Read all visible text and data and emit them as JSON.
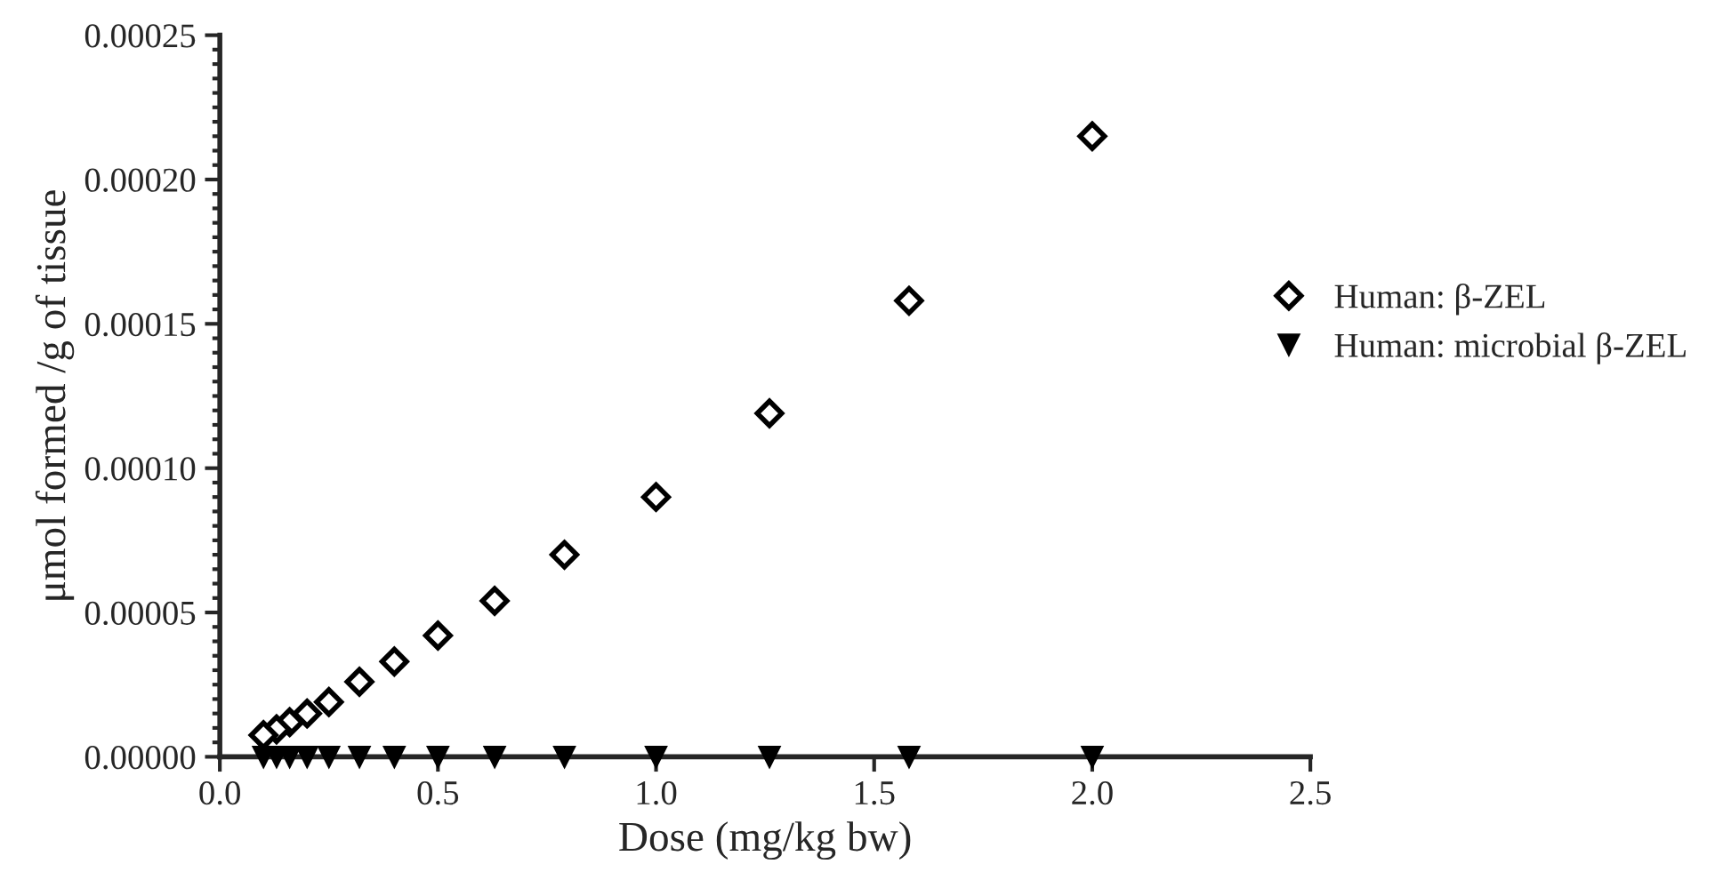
{
  "chart_data": {
    "type": "scatter",
    "xlabel": "Dose (mg/kg bw)",
    "ylabel": "μmol formed /g of tissue",
    "xlim": [
      0,
      2.5
    ],
    "ylim": [
      0,
      0.00025
    ],
    "xticks": [
      {
        "value": 0,
        "label": "0.0"
      },
      {
        "value": 0.5,
        "label": "0.5"
      },
      {
        "value": 1,
        "label": "1.0"
      },
      {
        "value": 1.5,
        "label": "1.5"
      },
      {
        "value": 2,
        "label": "2.0"
      },
      {
        "value": 2.5,
        "label": "2.5"
      }
    ],
    "yticks": [
      {
        "value": 0,
        "label": "0.00000"
      },
      {
        "value": 5e-05,
        "label": "0.00005"
      },
      {
        "value": 0.0001,
        "label": "0.00010"
      },
      {
        "value": 0.00015,
        "label": "0.00015"
      },
      {
        "value": 0.0002,
        "label": "0.00020"
      },
      {
        "value": 0.00025,
        "label": "0.00025"
      }
    ],
    "x": [
      2.0,
      1.58,
      1.26,
      1.0,
      0.79,
      0.63,
      0.5,
      0.4,
      0.32,
      0.25,
      0.2,
      0.16,
      0.13,
      0.1
    ],
    "series": [
      {
        "name": "Human: β-ZEL",
        "color": "#000000",
        "marker": "diamond",
        "values": [
          0.000215,
          0.000158,
          0.000119,
          9e-05,
          7e-05,
          5.4e-05,
          4.2e-05,
          3.3e-05,
          2.6e-05,
          1.9e-05,
          1.5e-05,
          1.2e-05,
          9.5e-06,
          7.5e-06
        ]
      },
      {
        "name": "Human: microbial β-ZEL",
        "color": "#000000",
        "marker": "triangle",
        "values": [
          0,
          0,
          0,
          0,
          0,
          0,
          0,
          0,
          0,
          0,
          0,
          0,
          0,
          0
        ]
      }
    ],
    "legend": "right",
    "grid": false
  }
}
